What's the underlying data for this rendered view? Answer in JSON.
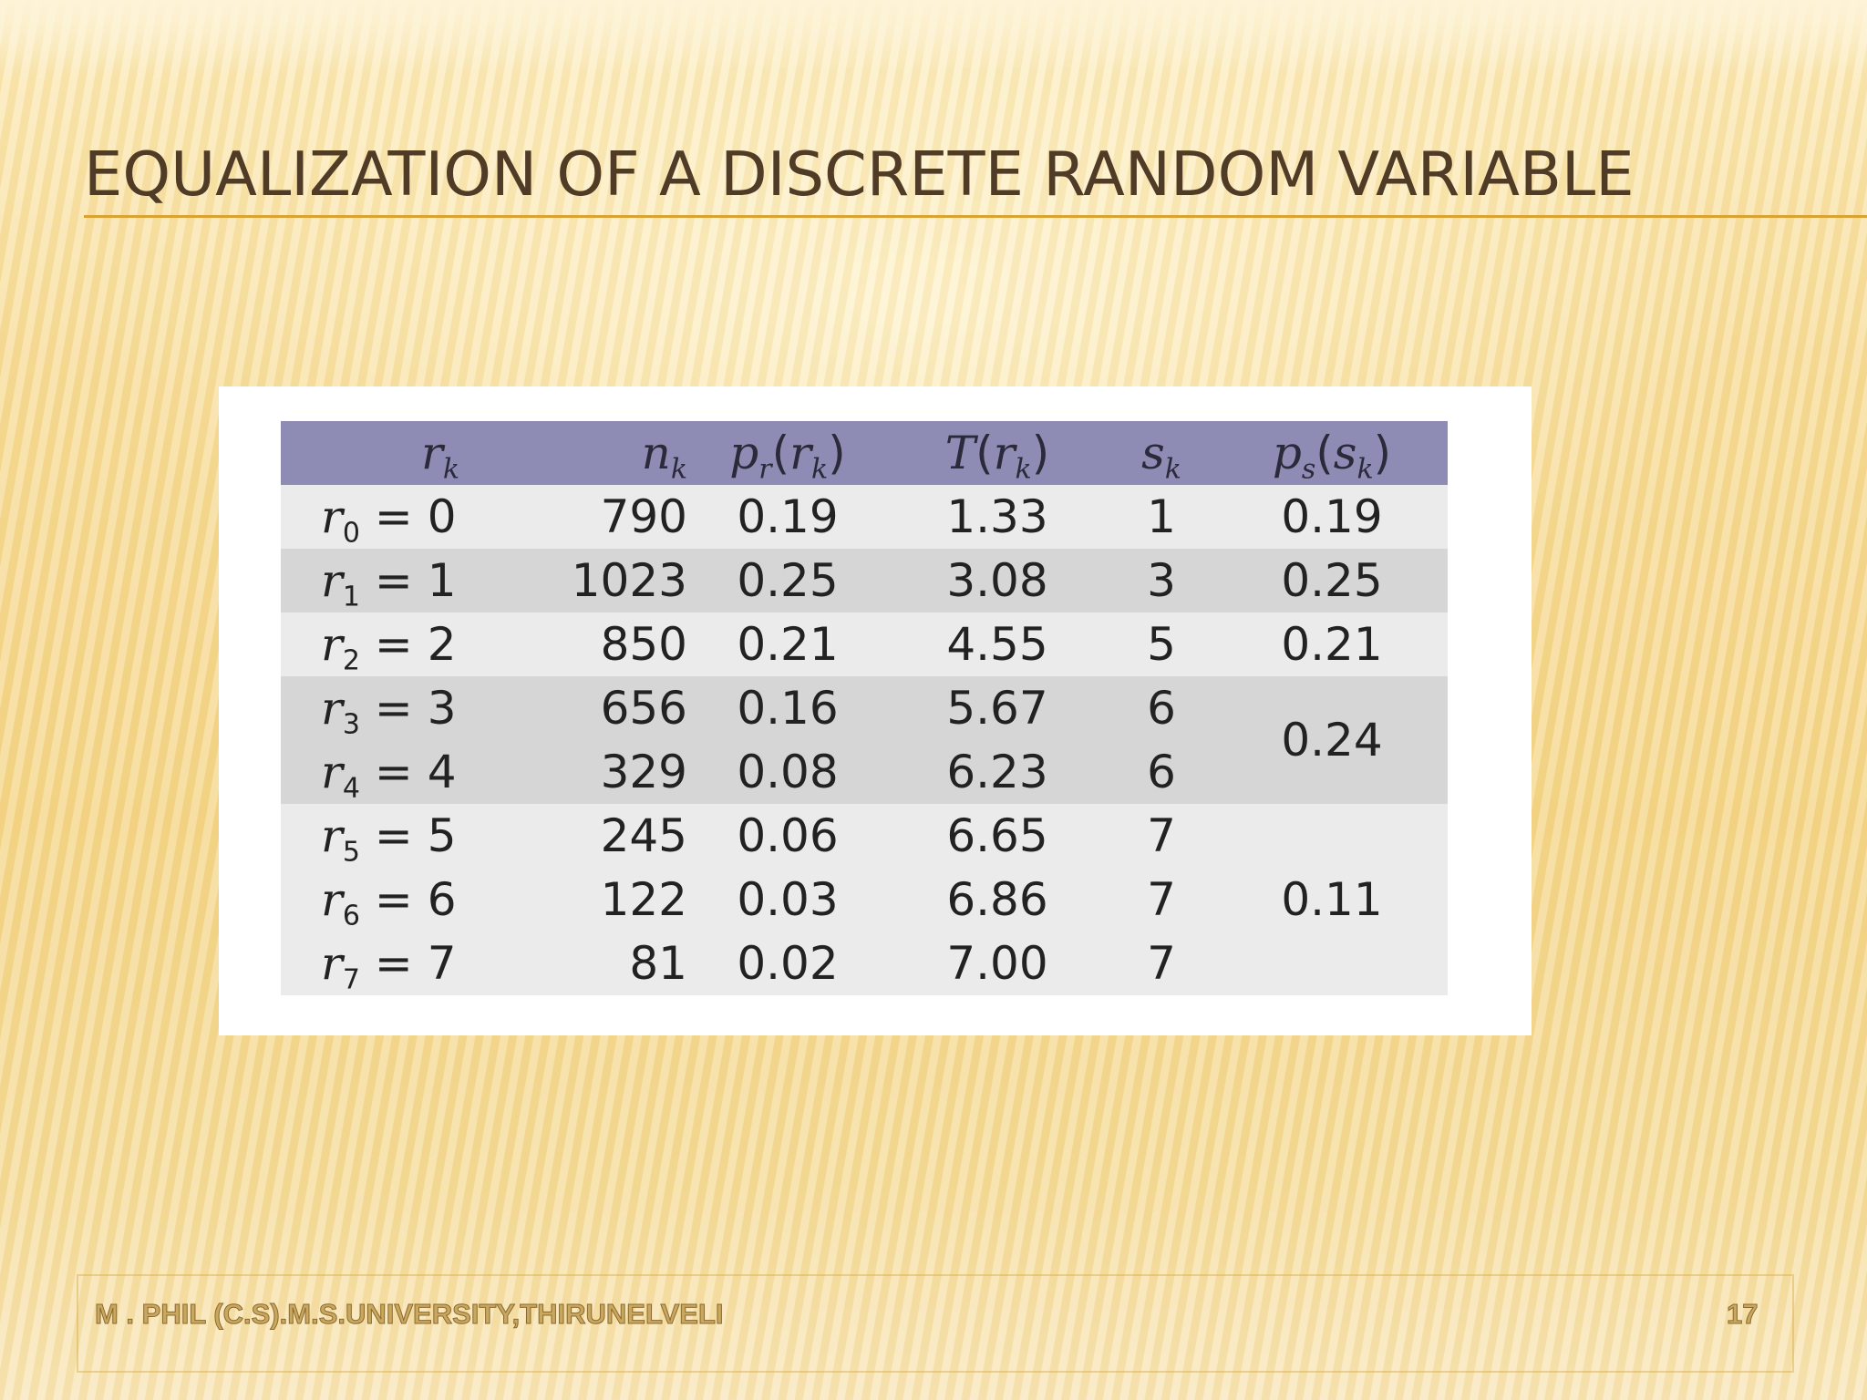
{
  "slide": {
    "title": "EQUALIZATION OF A DISCRETE RANDOM VARIABLE",
    "footer_text": "M . PHIL (C.S).M.S.UNIVERSITY,THIRUNELVELI",
    "page_number": "17"
  },
  "table": {
    "headers": {
      "r": {
        "base": "r",
        "sub": "k"
      },
      "n": {
        "base": "n",
        "sub": "k"
      },
      "p": {
        "base": "p",
        "sub": "r",
        "arg_base": "r",
        "arg_sub": "k"
      },
      "t": {
        "base": "T",
        "arg_base": "r",
        "arg_sub": "k"
      },
      "s": {
        "base": "s",
        "sub": "k"
      },
      "ps": {
        "base": "p",
        "sub": "s",
        "arg_base": "s",
        "arg_sub": "k"
      }
    },
    "rows": [
      {
        "r_sub": "0",
        "r_val": "0",
        "n": "790",
        "p": "0.19",
        "t": "1.33",
        "s": "1"
      },
      {
        "r_sub": "1",
        "r_val": "1",
        "n": "1023",
        "p": "0.25",
        "t": "3.08",
        "s": "3"
      },
      {
        "r_sub": "2",
        "r_val": "2",
        "n": "850",
        "p": "0.21",
        "t": "4.55",
        "s": "5"
      },
      {
        "r_sub": "3",
        "r_val": "3",
        "n": "656",
        "p": "0.16",
        "t": "5.67",
        "s": "6"
      },
      {
        "r_sub": "4",
        "r_val": "4",
        "n": "329",
        "p": "0.08",
        "t": "6.23",
        "s": "6"
      },
      {
        "r_sub": "5",
        "r_val": "5",
        "n": "245",
        "p": "0.06",
        "t": "6.65",
        "s": "7"
      },
      {
        "r_sub": "6",
        "r_val": "6",
        "n": "122",
        "p": "0.03",
        "t": "6.86",
        "s": "7"
      },
      {
        "r_sub": "7",
        "r_val": "7",
        "n": "81",
        "p": "0.02",
        "t": "7.00",
        "s": "7"
      }
    ],
    "ps_values": [
      "0.19",
      "0.25",
      "0.21",
      "0.24",
      "0.11"
    ]
  }
}
